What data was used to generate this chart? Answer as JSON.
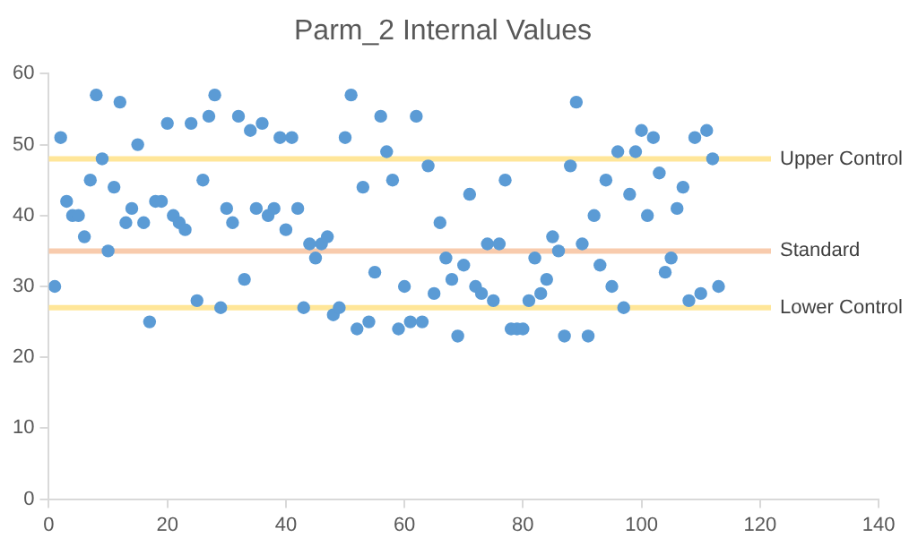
{
  "chart_data": {
    "type": "scatter",
    "title": "Parm_2 Internal Values",
    "x": [
      1,
      2,
      3,
      4,
      5,
      6,
      7,
      8,
      9,
      10,
      11,
      12,
      13,
      14,
      15,
      16,
      17,
      18,
      19,
      20,
      21,
      22,
      23,
      24,
      25,
      26,
      27,
      28,
      29,
      30,
      31,
      32,
      33,
      34,
      35,
      36,
      37,
      38,
      39,
      40,
      41,
      42,
      43,
      44,
      45,
      46,
      47,
      48,
      49,
      50,
      51,
      52,
      53,
      54,
      55,
      56,
      57,
      58,
      59,
      60,
      61,
      62,
      63,
      64,
      65,
      66,
      67,
      68,
      69,
      70,
      71,
      72,
      73,
      74,
      75,
      76,
      77,
      78,
      79,
      80,
      81,
      82,
      83,
      84,
      85,
      86,
      87,
      88,
      89,
      90,
      91,
      92,
      93,
      94,
      95,
      96,
      97,
      98,
      99,
      100,
      101,
      102,
      103,
      104,
      105,
      106,
      107,
      108,
      109,
      110,
      111,
      112,
      113
    ],
    "series": [
      {
        "color": "#5b9bd5",
        "values": [
          30,
          51,
          42,
          40,
          40,
          37,
          45,
          57,
          48,
          35,
          44,
          56,
          39,
          41,
          50,
          39,
          25,
          42,
          42,
          53,
          40,
          39,
          38,
          53,
          28,
          45,
          54,
          57,
          27,
          41,
          39,
          54,
          31,
          52,
          41,
          53,
          40,
          41,
          51,
          38,
          51,
          41,
          27,
          36,
          34,
          36,
          37,
          26,
          27,
          51,
          57,
          24,
          44,
          25,
          32,
          54,
          49,
          45,
          24,
          30,
          25,
          54,
          25,
          47,
          29,
          39,
          34,
          31,
          23,
          33,
          43,
          30,
          29,
          36,
          28,
          36,
          45,
          24,
          24,
          24,
          28,
          34,
          29,
          31,
          37,
          35,
          23,
          47,
          56,
          36,
          23,
          40,
          33,
          45,
          30,
          49,
          27,
          43,
          49,
          52,
          40,
          51,
          46,
          32,
          34,
          41,
          44,
          28,
          51,
          29,
          52,
          48,
          30
        ]
      }
    ],
    "xlim": [
      0,
      140
    ],
    "xticks": [
      0,
      20,
      40,
      60,
      80,
      100,
      120,
      140
    ],
    "ylim": [
      0,
      60
    ],
    "yticks": [
      0,
      10,
      20,
      30,
      40,
      50,
      60
    ],
    "grid": false,
    "legend": false,
    "marker": "circle",
    "ref_lines": [
      {
        "axis": "y",
        "value": 48,
        "label": "Upper Control",
        "color": "#ffe699"
      },
      {
        "axis": "y",
        "value": 35,
        "label": "Standard",
        "color": "#f8cbad"
      },
      {
        "axis": "y",
        "value": 27,
        "label": "Lower Control",
        "color": "#ffe699"
      }
    ]
  }
}
